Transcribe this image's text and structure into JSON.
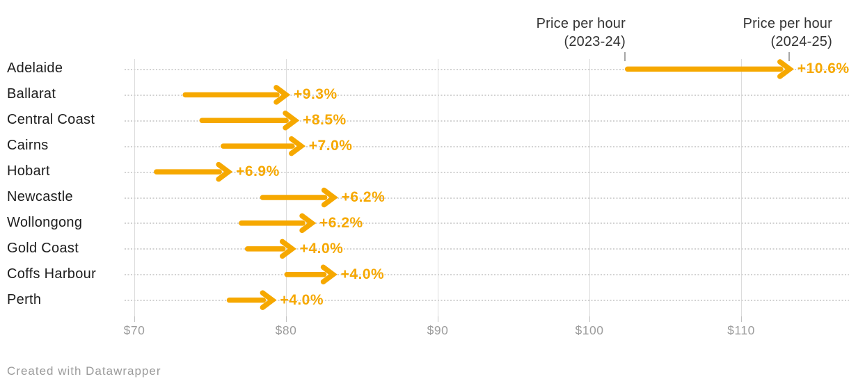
{
  "chart": {
    "column_headers": [
      {
        "line1": "Price per hour",
        "line2": "(2023-24)"
      },
      {
        "line1": "Price per hour",
        "line2": "(2024-25)"
      }
    ],
    "footer": "Created with Datawrapper"
  },
  "chart_data": {
    "type": "arrow",
    "orientation": "horizontal",
    "title": "",
    "xlabel": "",
    "ylabel": "",
    "categories": [
      "Adelaide",
      "Ballarat",
      "Central Coast",
      "Cairns",
      "Hobart",
      "Newcastle",
      "Wollongong",
      "Gold Coast",
      "Coffs Harbour",
      "Perth"
    ],
    "series": [
      {
        "name": "Price per hour (2023-24)",
        "values": [
          102.35,
          73.2,
          74.3,
          75.7,
          71.3,
          78.3,
          76.9,
          77.3,
          79.9,
          76.1
        ]
      },
      {
        "name": "Price per hour (2024-25)",
        "values": [
          113.2,
          80.0,
          80.6,
          81.0,
          76.2,
          83.15,
          81.7,
          80.4,
          83.1,
          79.1
        ]
      }
    ],
    "change_labels": [
      "+10.6%",
      "+9.3%",
      "+8.5%",
      "+7.0%",
      "+6.9%",
      "+6.2%",
      "+6.2%",
      "+4.0%",
      "+4.0%",
      "+4.0%"
    ],
    "x_axis": {
      "tick_labels": [
        "$70",
        "$80",
        "$90",
        "$100",
        "$110"
      ],
      "tick_values": [
        70,
        80,
        90,
        100,
        110
      ],
      "xlim": [
        61.1,
        117.1
      ],
      "grid": true
    },
    "row_guides": "dotted",
    "legend": "column-headers-top-right",
    "colors": {
      "arrow": "#F6A800",
      "change_label": "#F6A800",
      "category_text": "#1d1d1d",
      "header_text": "#333333",
      "axis_text": "#9d9d9d",
      "grid": "#dcdcdc",
      "footer_text": "#9b9b9b"
    }
  }
}
